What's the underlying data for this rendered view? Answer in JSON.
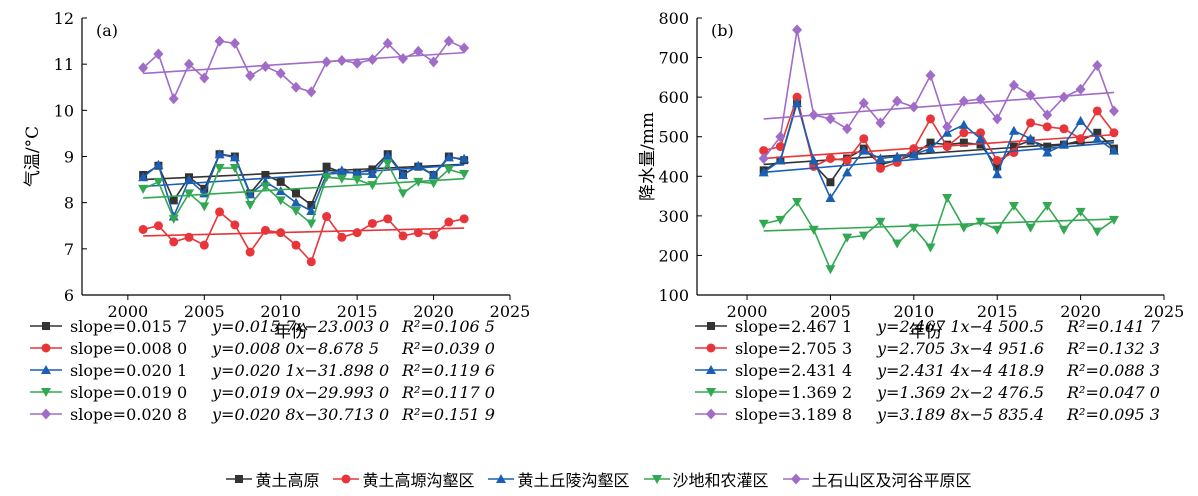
{
  "chart_data": [
    {
      "type": "line",
      "panel_label": "(a)",
      "ylabel": "气温/°C",
      "xlabel": "年份",
      "xlim": [
        1997,
        2025
      ],
      "ylim": [
        6,
        12
      ],
      "xticks": [
        2000,
        2005,
        2010,
        2015,
        2020,
        2025
      ],
      "yticks": [
        6,
        7,
        8,
        9,
        10,
        11,
        12
      ],
      "x": [
        2001,
        2002,
        2003,
        2004,
        2005,
        2006,
        2007,
        2008,
        2009,
        2010,
        2011,
        2012,
        2013,
        2014,
        2015,
        2016,
        2017,
        2018,
        2019,
        2020,
        2021,
        2022
      ],
      "series": [
        {
          "name": "黄土高原",
          "color": "#333333",
          "marker": "square",
          "values": [
            8.6,
            8.8,
            8.05,
            8.55,
            8.3,
            9.05,
            9.0,
            8.2,
            8.6,
            8.45,
            8.2,
            7.95,
            8.78,
            8.65,
            8.65,
            8.72,
            9.05,
            8.62,
            8.78,
            8.6,
            9.0,
            8.92
          ],
          "slope_text": "slope=0.015 7",
          "eq_text": "y=0.015 7x−23.003 0",
          "r2_text": "R²=0.106 5",
          "trend_y": [
            8.5,
            8.83
          ]
        },
        {
          "name": "黄土高塬沟壑区",
          "color": "#e8353a",
          "marker": "circle",
          "values": [
            7.42,
            7.5,
            7.15,
            7.25,
            7.08,
            7.8,
            7.52,
            6.93,
            7.4,
            7.35,
            7.08,
            6.72,
            7.7,
            7.25,
            7.35,
            7.55,
            7.65,
            7.28,
            7.35,
            7.3,
            7.58,
            7.65
          ],
          "slope_text": "slope=0.008 0",
          "eq_text": "y=0.008 0x−8.678 5",
          "r2_text": "R²=0.039 0",
          "trend_y": [
            7.28,
            7.45
          ]
        },
        {
          "name": "黄土丘陵沟壑区",
          "color": "#1a5fb4",
          "marker": "triangle-up",
          "values": [
            8.55,
            8.82,
            7.7,
            8.5,
            8.2,
            9.05,
            8.98,
            8.18,
            8.45,
            8.25,
            8.0,
            7.82,
            8.62,
            8.7,
            8.62,
            8.62,
            9.02,
            8.6,
            8.8,
            8.6,
            8.98,
            8.95
          ],
          "slope_text": "slope=0.020 1",
          "eq_text": "y=0.020 1x−31.898 0",
          "r2_text": "R²=0.119 6",
          "trend_y": [
            8.35,
            8.82
          ]
        },
        {
          "name": "沙地和农灌区",
          "color": "#33a852",
          "marker": "triangle-down",
          "values": [
            8.3,
            8.45,
            7.65,
            8.2,
            7.92,
            8.75,
            8.75,
            7.95,
            8.35,
            8.05,
            7.82,
            7.55,
            8.55,
            8.52,
            8.5,
            8.38,
            8.85,
            8.2,
            8.45,
            8.42,
            8.72,
            8.62
          ],
          "slope_text": "slope=0.019 0",
          "eq_text": "y=0.019 0x−29.993 0",
          "r2_text": "R²=0.117 0",
          "trend_y": [
            8.1,
            8.52
          ]
        },
        {
          "name": "土石山区及河谷平原区",
          "color": "#a06cc8",
          "marker": "diamond",
          "values": [
            10.92,
            11.22,
            10.25,
            11.0,
            10.7,
            11.5,
            11.45,
            10.75,
            10.95,
            10.8,
            10.5,
            10.4,
            11.05,
            11.08,
            11.02,
            11.1,
            11.45,
            11.12,
            11.28,
            11.05,
            11.5,
            11.35
          ],
          "slope_text": "slope=0.020 8",
          "eq_text": "y=0.020 8x−30.713 0",
          "r2_text": "R²=0.151 9",
          "trend_y": [
            10.8,
            11.25
          ]
        }
      ]
    },
    {
      "type": "line",
      "panel_label": "(b)",
      "ylabel": "降水量/mm",
      "xlabel": "年份",
      "xlim": [
        1997,
        2025
      ],
      "ylim": [
        100,
        800
      ],
      "xticks": [
        2000,
        2005,
        2010,
        2015,
        2020,
        2025
      ],
      "yticks": [
        100,
        200,
        300,
        400,
        500,
        600,
        700,
        800
      ],
      "x": [
        2001,
        2002,
        2003,
        2004,
        2005,
        2006,
        2007,
        2008,
        2009,
        2010,
        2011,
        2012,
        2013,
        2014,
        2015,
        2016,
        2017,
        2018,
        2019,
        2020,
        2021,
        2022
      ],
      "series": [
        {
          "name": "黄土高原",
          "color": "#333333",
          "marker": "square",
          "values": [
            415,
            440,
            590,
            430,
            385,
            445,
            470,
            430,
            440,
            455,
            485,
            480,
            485,
            480,
            425,
            475,
            490,
            475,
            480,
            490,
            510,
            470
          ],
          "slope_text": "slope=2.467 1",
          "eq_text": "y=2.467 1x−4 500.5",
          "r2_text": "R²=0.141 7",
          "trend_y": [
            430,
            490
          ]
        },
        {
          "name": "黄土高塬沟壑区",
          "color": "#e8353a",
          "marker": "circle",
          "values": [
            465,
            475,
            600,
            425,
            445,
            440,
            495,
            420,
            435,
            470,
            545,
            475,
            510,
            510,
            440,
            460,
            535,
            525,
            520,
            495,
            565,
            510
          ],
          "slope_text": "slope=2.705 3",
          "eq_text": "y=2.705 3x−4 951.6",
          "r2_text": "R²=0.132 3",
          "trend_y": [
            445,
            505
          ]
        },
        {
          "name": "黄土丘陵沟壑区",
          "color": "#1a5fb4",
          "marker": "triangle-up",
          "values": [
            410,
            440,
            585,
            440,
            345,
            410,
            465,
            445,
            450,
            455,
            470,
            510,
            530,
            495,
            405,
            515,
            495,
            460,
            480,
            540,
            495,
            465
          ],
          "slope_text": "slope=2.431 4",
          "eq_text": "y=2.431 4x−4 418.9",
          "r2_text": "R²=0.088 3",
          "trend_y": [
            410,
            485
          ]
        },
        {
          "name": "沙地和农灌区",
          "color": "#33a852",
          "marker": "triangle-down",
          "values": [
            280,
            290,
            335,
            265,
            165,
            245,
            250,
            285,
            230,
            270,
            220,
            345,
            270,
            285,
            265,
            325,
            270,
            325,
            265,
            310,
            260,
            290
          ],
          "slope_text": "slope=1.369 2",
          "eq_text": "y=1.369 2x−2 476.5",
          "r2_text": "R²=0.047 0",
          "trend_y": [
            262,
            292
          ]
        },
        {
          "name": "土石山区及河谷平原区",
          "color": "#a06cc8",
          "marker": "diamond",
          "values": [
            445,
            500,
            770,
            555,
            545,
            520,
            585,
            535,
            590,
            575,
            655,
            525,
            590,
            595,
            545,
            630,
            605,
            555,
            600,
            620,
            680,
            565
          ],
          "slope_text": "slope=3.189 8",
          "eq_text": "y=3.189 8x−5 835.4",
          "r2_text": "R²=0.095 3",
          "trend_y": [
            545,
            612
          ]
        }
      ]
    }
  ],
  "legend_bottom": [
    {
      "label": "黄土高原",
      "color": "#333333",
      "marker": "square"
    },
    {
      "label": "黄土高塬沟壑区",
      "color": "#e8353a",
      "marker": "circle"
    },
    {
      "label": "黄土丘陵沟壑区",
      "color": "#1a5fb4",
      "marker": "triangle-up"
    },
    {
      "label": "沙地和农灌区",
      "color": "#33a852",
      "marker": "triangle-down"
    },
    {
      "label": "土石山区及河谷平原区",
      "color": "#a06cc8",
      "marker": "diamond"
    }
  ]
}
